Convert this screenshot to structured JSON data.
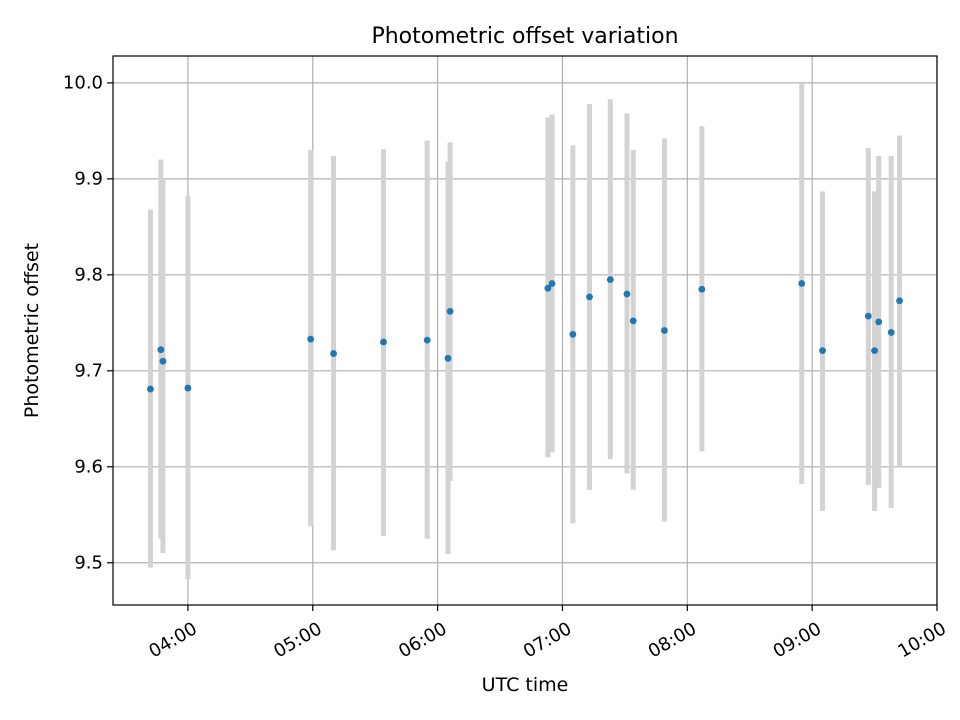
{
  "chart_data": {
    "type": "scatter",
    "title": "Photometric offset variation",
    "xlabel": "UTC time",
    "ylabel": "Photometric offset",
    "xlim": [
      "03:24",
      "10:00"
    ],
    "ylim": [
      9.456,
      10.028
    ],
    "grid": true,
    "x_ticks": [
      "04:00",
      "05:00",
      "06:00",
      "07:00",
      "08:00",
      "09:00",
      "10:00"
    ],
    "y_ticks": [
      "9.5",
      "9.6",
      "9.7",
      "9.8",
      "9.9",
      "10.0"
    ],
    "point_color": "#1f77b4",
    "errorbar_color": "#d3d3d3",
    "series": [
      {
        "points": [
          {
            "x": "03:42",
            "y": 9.681,
            "low": 9.495,
            "high": 9.868
          },
          {
            "x": "03:47",
            "y": 9.722,
            "low": 9.525,
            "high": 9.92
          },
          {
            "x": "03:48",
            "y": 9.71,
            "low": 9.51,
            "high": 9.9
          },
          {
            "x": "04:00",
            "y": 9.682,
            "low": 9.483,
            "high": 9.882
          },
          {
            "x": "04:59",
            "y": 9.733,
            "low": 9.538,
            "high": 9.93
          },
          {
            "x": "05:10",
            "y": 9.718,
            "low": 9.513,
            "high": 9.924
          },
          {
            "x": "05:34",
            "y": 9.73,
            "low": 9.528,
            "high": 9.931
          },
          {
            "x": "05:55",
            "y": 9.732,
            "low": 9.525,
            "high": 9.94
          },
          {
            "x": "06:05",
            "y": 9.713,
            "low": 9.509,
            "high": 9.918
          },
          {
            "x": "06:06",
            "y": 9.762,
            "low": 9.585,
            "high": 9.938
          },
          {
            "x": "06:53",
            "y": 9.786,
            "low": 9.61,
            "high": 9.964
          },
          {
            "x": "06:55",
            "y": 9.791,
            "low": 9.615,
            "high": 9.967
          },
          {
            "x": "07:05",
            "y": 9.738,
            "low": 9.541,
            "high": 9.935
          },
          {
            "x": "07:13",
            "y": 9.777,
            "low": 9.576,
            "high": 9.978
          },
          {
            "x": "07:23",
            "y": 9.795,
            "low": 9.608,
            "high": 9.983
          },
          {
            "x": "07:31",
            "y": 9.78,
            "low": 9.593,
            "high": 9.968
          },
          {
            "x": "07:34",
            "y": 9.752,
            "low": 9.576,
            "high": 9.93
          },
          {
            "x": "07:49",
            "y": 9.742,
            "low": 9.543,
            "high": 9.942
          },
          {
            "x": "08:07",
            "y": 9.785,
            "low": 9.616,
            "high": 9.955
          },
          {
            "x": "08:55",
            "y": 9.791,
            "low": 9.582,
            "high": 10.0
          },
          {
            "x": "09:05",
            "y": 9.721,
            "low": 9.554,
            "high": 9.887
          },
          {
            "x": "09:27",
            "y": 9.757,
            "low": 9.581,
            "high": 9.932
          },
          {
            "x": "09:30",
            "y": 9.721,
            "low": 9.554,
            "high": 9.887
          },
          {
            "x": "09:32",
            "y": 9.751,
            "low": 9.578,
            "high": 9.924
          },
          {
            "x": "09:38",
            "y": 9.74,
            "low": 9.557,
            "high": 9.924
          },
          {
            "x": "09:42",
            "y": 9.773,
            "low": 9.6,
            "high": 9.945
          }
        ]
      }
    ]
  }
}
